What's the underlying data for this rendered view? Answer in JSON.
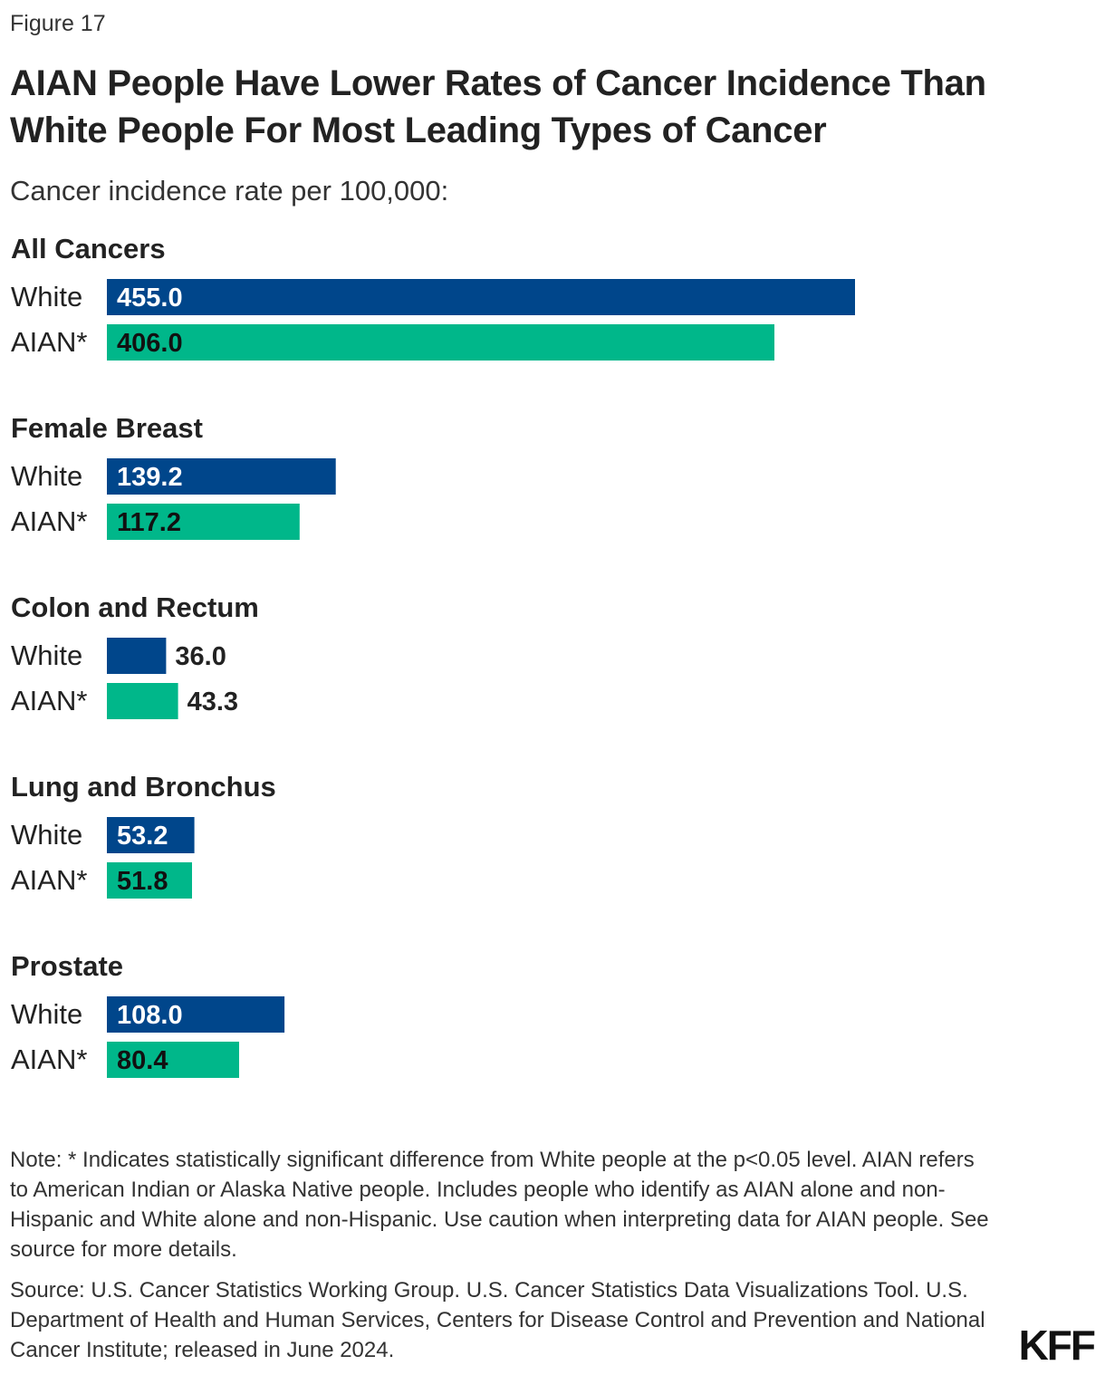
{
  "figure_label": "Figure 17",
  "notes": "Note: * Indicates statistically significant difference from White people at the p<0.05 level. AIAN refers to American Indian or Alaska Native people. Includes people who identify as AIAN alone and non-Hispanic and White alone and non-Hispanic. Use caution when interpreting data for AIAN people. See source for more details.",
  "source": "Source: U.S. Cancer Statistics Working Group. U.S. Cancer Statistics Data Visualizations Tool. U.S. Department of Health and Human Services, Centers for Disease Control and Prevention and National Cancer Institute; released in June 2024.",
  "logo_text": "KFF",
  "colors": {
    "white_series": "#00468b",
    "aian_series": "#00b78a",
    "label_on_dark": "#ffffff",
    "label_on_light": "#111111",
    "label_outside": "#222222"
  },
  "chart_data": {
    "type": "bar",
    "orientation": "horizontal",
    "title": "AIAN People Have Lower Rates of Cancer Incidence Than White People For Most Leading Types of Cancer",
    "subtitle": "Cancer incidence rate per 100,000:",
    "xlim": [
      0,
      500
    ],
    "grid": false,
    "legend": "none",
    "groups": [
      {
        "name": "All Cancers",
        "rows": [
          {
            "label": "White",
            "value": 455.0,
            "display": "455.0",
            "series": "white_series"
          },
          {
            "label": "AIAN*",
            "value": 406.0,
            "display": "406.0",
            "series": "aian_series"
          }
        ]
      },
      {
        "name": "Female Breast",
        "rows": [
          {
            "label": "White",
            "value": 139.2,
            "display": "139.2",
            "series": "white_series"
          },
          {
            "label": "AIAN*",
            "value": 117.2,
            "display": "117.2",
            "series": "aian_series"
          }
        ]
      },
      {
        "name": "Colon and Rectum",
        "rows": [
          {
            "label": "White",
            "value": 36.0,
            "display": "36.0",
            "series": "white_series"
          },
          {
            "label": "AIAN*",
            "value": 43.3,
            "display": "43.3",
            "series": "aian_series"
          }
        ]
      },
      {
        "name": "Lung and Bronchus",
        "rows": [
          {
            "label": "White",
            "value": 53.2,
            "display": "53.2",
            "series": "white_series"
          },
          {
            "label": "AIAN*",
            "value": 51.8,
            "display": "51.8",
            "series": "aian_series"
          }
        ]
      },
      {
        "name": "Prostate",
        "rows": [
          {
            "label": "White",
            "value": 108.0,
            "display": "108.0",
            "series": "white_series"
          },
          {
            "label": "AIAN*",
            "value": 80.4,
            "display": "80.4",
            "series": "aian_series"
          }
        ]
      }
    ]
  }
}
